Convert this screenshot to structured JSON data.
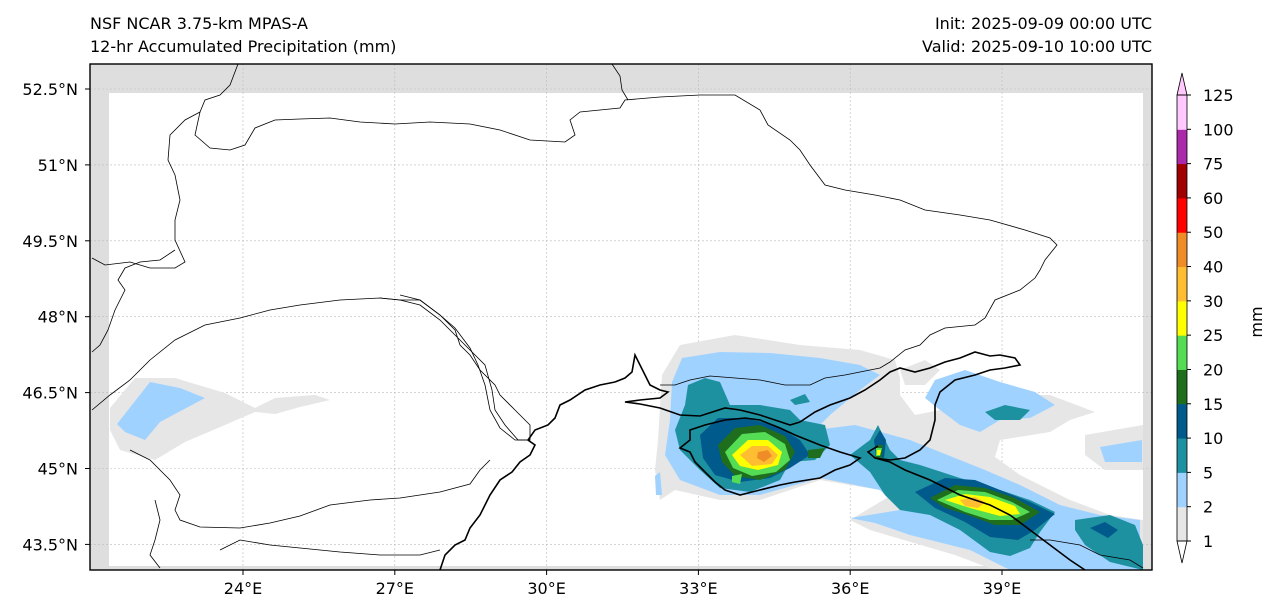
{
  "header": {
    "model": "NSF NCAR 3.75-km MPAS-A",
    "field": "12-hr Accumulated Precipitation (mm)",
    "init": "Init: 2025-09-09 00:00 UTC",
    "valid": "Valid: 2025-09-10 10:00 UTC"
  },
  "map": {
    "lat_ticks": [
      {
        "value": 52.5,
        "label": "52.5°N"
      },
      {
        "value": 51,
        "label": "51°N"
      },
      {
        "value": 49.5,
        "label": "49.5°N"
      },
      {
        "value": 48,
        "label": "48°N"
      },
      {
        "value": 46.5,
        "label": "46.5°N"
      },
      {
        "value": 45,
        "label": "45°N"
      },
      {
        "value": 43.5,
        "label": "43.5°N"
      }
    ],
    "lon_ticks": [
      {
        "value": 24,
        "label": "24°E"
      },
      {
        "value": 27,
        "label": "27°E"
      },
      {
        "value": 30,
        "label": "30°E"
      },
      {
        "value": 33,
        "label": "33°E"
      },
      {
        "value": 36,
        "label": "36°E"
      },
      {
        "value": 39,
        "label": "39°E"
      }
    ],
    "extent": {
      "lon": [
        21.0,
        42.2
      ],
      "lat": [
        43.0,
        53.0
      ]
    }
  },
  "colorbar": {
    "unit_label": "mm",
    "levels": [
      "1",
      "2",
      "5",
      "10",
      "15",
      "20",
      "25",
      "30",
      "40",
      "50",
      "60",
      "75",
      "100",
      "125"
    ],
    "colors": [
      "#e6e6e6",
      "#a0d2ff",
      "#1e91a0",
      "#005a8c",
      "#1e6e1e",
      "#55dc55",
      "#ffff00",
      "#ffbe32",
      "#f08c28",
      "#ff0000",
      "#a00000",
      "#aa2aaa",
      "#ffc8ff"
    ]
  }
}
